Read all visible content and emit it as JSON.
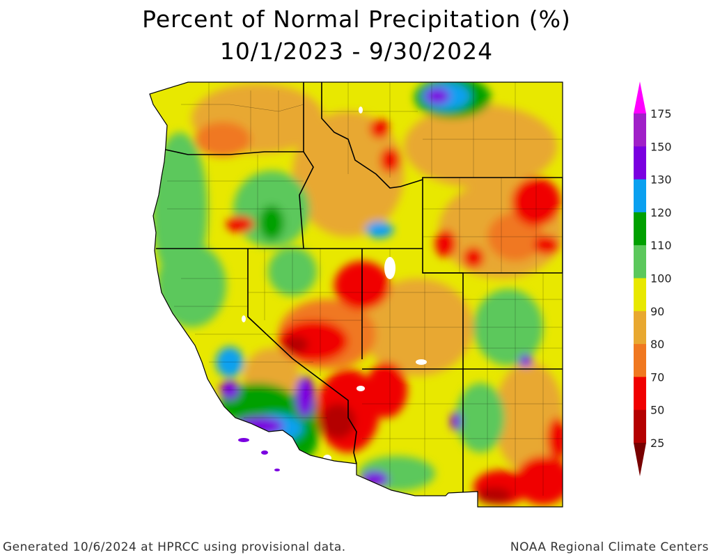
{
  "title": {
    "line1": "Percent of Normal Precipitation (%)",
    "line2": "10/1/2023 - 9/30/2024"
  },
  "legend": {
    "ticks": [
      "175",
      "150",
      "130",
      "120",
      "110",
      "100",
      "90",
      "80",
      "70",
      "50",
      "25"
    ],
    "colors": [
      "#ff00ff",
      "#a020c8",
      "#7a00e0",
      "#0aa0f0",
      "#00a000",
      "#5cc85c",
      "#e8e800",
      "#e8a830",
      "#f07820",
      "#f00000",
      "#b40000",
      "#780000"
    ]
  },
  "map": {
    "background_color": "#e8e800",
    "states": [
      "WA",
      "OR",
      "ID",
      "MT",
      "WY",
      "CA",
      "NV",
      "UT",
      "CO",
      "AZ",
      "NM"
    ]
  },
  "footer": {
    "left": "Generated 10/6/2024 at HPRCC using provisional data.",
    "right": "NOAA Regional Climate Centers"
  }
}
